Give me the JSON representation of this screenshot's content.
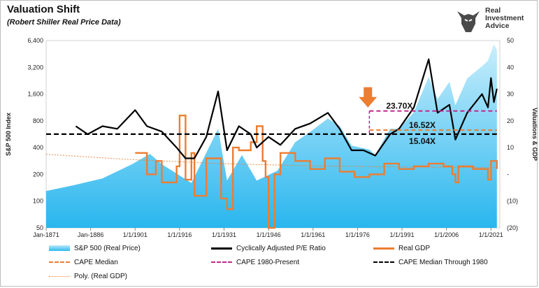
{
  "chart_title": "Valuation Shift",
  "chart_subtitle": "(Robert Shiller Real Price Data)",
  "logo": {
    "line1": "Real",
    "line2": "Investment",
    "line3": "Advice",
    "icon": "bull-head-icon"
  },
  "colors": {
    "spx": "#4fc8f4",
    "cape": "#000000",
    "gdp": "#ed7d31",
    "median": "#ed7d31",
    "cape1980": "#c0288a",
    "median1980": "#000000",
    "arrow": "#ed7d31"
  },
  "annotations": {
    "cape_1980_present": "23.70X",
    "cape_median": "16.52X",
    "cape_median_1980": "15.04X"
  },
  "legend": {
    "spx": "S&P 500 (Real Price)",
    "cape": "Cyclically Adjusted P/E Ratio",
    "gdp": "Real GDP",
    "median": "CAPE Median",
    "cape1980": "CAPE 1980-Present",
    "median1980": "CAPE Median Through 1980",
    "poly": "Poly. (Real GDP)"
  },
  "chart_data": {
    "type": "area",
    "title": "Valuation Shift",
    "subtitle": "(Robert Shiller Real Price Data)",
    "ylabel": "S&P 500 Index",
    "y2label": "Valuations & GDP",
    "ylim": [
      50,
      6400
    ],
    "y_scale": "log",
    "y2lim": [
      -20,
      50
    ],
    "x_ticks": [
      "Jan-1871",
      "Jan-1886",
      "1/1/1901",
      "1/1/1916",
      "1/1/1931",
      "1/1/1946",
      "1/1/1961",
      "1/1/1976",
      "1/1/1991",
      "1/1/2006",
      "1/1/2021"
    ],
    "y_ticks": [
      "6,400",
      "3,200",
      "1,600",
      "800",
      "400",
      "200",
      "100",
      "50"
    ],
    "y2_ticks": [
      "50",
      "40",
      "30",
      "20",
      "10",
      "-",
      "(10)",
      "(20)"
    ],
    "legend_position": "bottom",
    "series": [
      {
        "name": "S&P 500 (Real Price)",
        "axis": "left",
        "x": [
          1871,
          1880,
          1890,
          1900,
          1906,
          1910,
          1920,
          1929,
          1932,
          1937,
          1942,
          1949,
          1955,
          1960,
          1966,
          1970,
          1974,
          1980,
          1982,
          1987,
          1990,
          1995,
          2000,
          2003,
          2007,
          2009,
          2013,
          2018,
          2020,
          2022,
          2023
        ],
        "values": [
          130,
          150,
          180,
          260,
          340,
          260,
          160,
          650,
          170,
          330,
          170,
          220,
          460,
          600,
          850,
          700,
          420,
          380,
          330,
          650,
          650,
          1000,
          2500,
          1400,
          2200,
          1200,
          2400,
          3300,
          3800,
          5800,
          5000
        ]
      },
      {
        "name": "Cyclically Adjusted P/E Ratio",
        "axis": "right",
        "x": [
          1881,
          1885,
          1890,
          1895,
          1901,
          1905,
          1910,
          1915,
          1918,
          1921,
          1925,
          1929,
          1932,
          1936,
          1940,
          1942,
          1946,
          1950,
          1955,
          1960,
          1966,
          1970,
          1974,
          1978,
          1982,
          1987,
          1990,
          1995,
          2000,
          2003,
          2007,
          2009,
          2013,
          2018,
          2020,
          2021,
          2022,
          2023
        ],
        "values": [
          18,
          15,
          18,
          17,
          24,
          18,
          16,
          10,
          6,
          6,
          14,
          31,
          9,
          18,
          15,
          10,
          14,
          11,
          17,
          19,
          23,
          17,
          9,
          9,
          7,
          15,
          17,
          25,
          43,
          23,
          26,
          13,
          23,
          30,
          25,
          36,
          27,
          32
        ]
      },
      {
        "name": "Real GDP",
        "axis": "right",
        "x": [
          1901,
          1905,
          1908,
          1910,
          1915,
          1916,
          1918,
          1920,
          1921,
          1925,
          1929,
          1930,
          1932,
          1934,
          1936,
          1940,
          1942,
          1944,
          1945,
          1946,
          1948,
          1950,
          1955,
          1960,
          1965,
          1970,
          1975,
          1980,
          1985,
          1990,
          1995,
          2000,
          2005,
          2008,
          2009,
          2010,
          2015,
          2020,
          2021,
          2023
        ],
        "values": [
          8,
          0,
          5,
          -3,
          3,
          22,
          -2,
          8,
          -8,
          6,
          6,
          -9,
          -13,
          10,
          9,
          12,
          18,
          5,
          -1,
          -20,
          0,
          8,
          5,
          2,
          6,
          1,
          -1,
          0,
          4,
          2,
          3,
          4,
          3,
          0,
          -3,
          3,
          2,
          -2,
          5,
          2
        ]
      },
      {
        "name": "CAPE Median",
        "axis": "right",
        "x": [
          1980,
          2023
        ],
        "values": [
          16.52,
          16.52
        ]
      },
      {
        "name": "CAPE 1980-Present",
        "axis": "right",
        "x": [
          1980,
          2023
        ],
        "values": [
          23.7,
          23.7
        ]
      },
      {
        "name": "CAPE Median Through 1980",
        "axis": "right",
        "x": [
          1871,
          2023
        ],
        "values": [
          15.04,
          15.04
        ]
      },
      {
        "name": "Poly. (Real GDP)",
        "axis": "right",
        "x": [
          1871,
          1900,
          1930,
          1960,
          1990,
          2023
        ],
        "values": [
          7.5,
          5.5,
          4.0,
          3.2,
          2.8,
          2.5
        ]
      }
    ]
  }
}
